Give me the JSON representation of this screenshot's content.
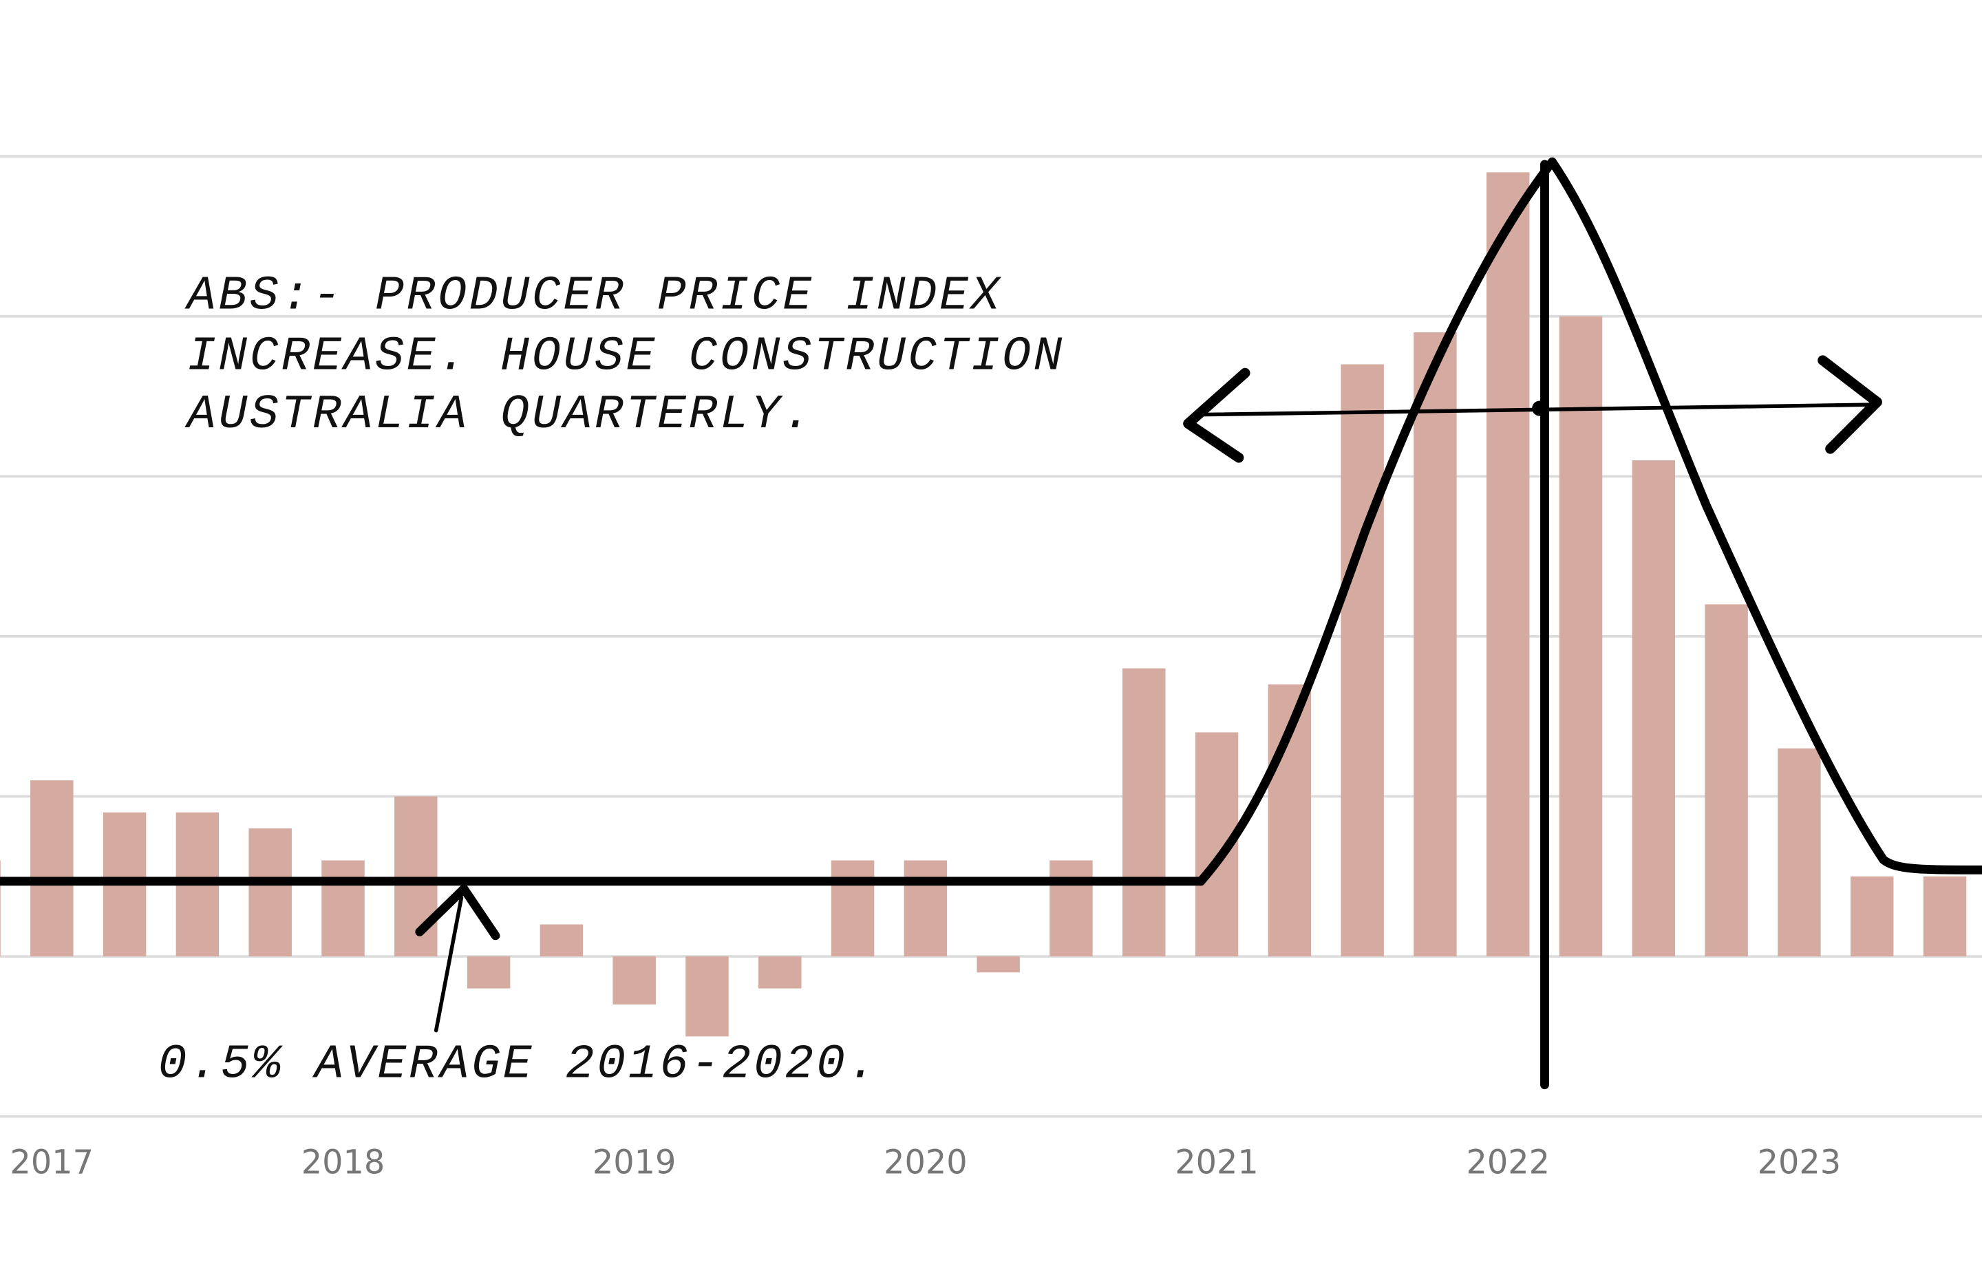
{
  "chart_data": {
    "type": "bar",
    "categories": [
      null,
      "2017",
      null,
      null,
      null,
      "2018",
      null,
      null,
      null,
      "2019",
      null,
      null,
      null,
      "2020",
      null,
      null,
      null,
      "2021",
      null,
      null,
      null,
      "2022",
      null,
      null,
      null,
      "2023",
      null,
      null
    ],
    "values": [
      0.6,
      1.1,
      0.9,
      0.9,
      0.8,
      0.6,
      1.0,
      -0.2,
      0.2,
      -0.3,
      -0.5,
      -0.2,
      0.6,
      0.6,
      -0.1,
      0.6,
      1.8,
      1.4,
      1.7,
      3.7,
      3.9,
      4.9,
      4.0,
      3.1,
      2.2,
      1.3,
      0.5,
      0.5
    ],
    "color": "#d4aaa1",
    "ylim": [
      -1,
      5
    ],
    "yticks": [
      -1,
      0,
      1,
      2,
      3,
      4,
      5
    ],
    "grid": true,
    "annotations": [
      "ABS:- PRODUCER PRICE INDEX",
      "INCREASE. HOUSE CONSTRUCTION",
      "AUSTRALIA QUARTERLY.",
      "0.5% AVERAGE 2016-2020."
    ]
  }
}
